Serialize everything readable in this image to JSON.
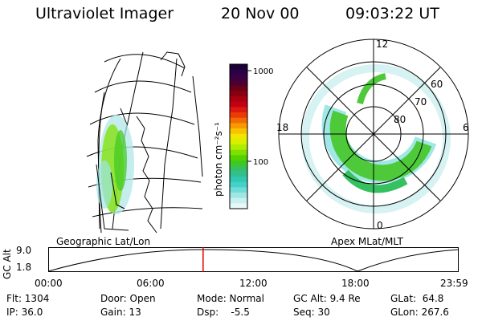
{
  "header": {
    "instrument": "Ultraviolet Imager",
    "date": "20 Nov 00",
    "time": "09:03:22 UT"
  },
  "colorbar": {
    "unit_label": "photon cm⁻²s⁻¹",
    "ticks": [
      "1000",
      "100"
    ],
    "colors": [
      "#1a0036",
      "#2a0046",
      "#3b0040",
      "#4a0030",
      "#6a0018",
      "#8a0010",
      "#a80010",
      "#c40012",
      "#da1a10",
      "#ea3a08",
      "#f26a00",
      "#f79a00",
      "#f7c200",
      "#f2e600",
      "#d7f000",
      "#b0ec00",
      "#7ee000",
      "#54d200",
      "#3ec820",
      "#36c060",
      "#30c090",
      "#30c8b0",
      "#44d2c8",
      "#70dcd8",
      "#a0e6e4",
      "#c8f0ee",
      "#e6f8f8"
    ]
  },
  "map_left": {
    "title": "Geographic Lat/Lon"
  },
  "polar_right": {
    "title": "Apex MLat/MLT",
    "mlt_labels": [
      "12",
      "18",
      "6",
      "0"
    ],
    "lat_labels": [
      "60",
      "70",
      "80"
    ]
  },
  "timeline": {
    "ylabel": "GC Alt",
    "y_ticks": [
      "9.0",
      "1.8"
    ],
    "x_ticks": [
      "00:00",
      "06:00",
      "12:00",
      "18:00",
      "23:59"
    ],
    "current_time_hours": 9.056,
    "marker_color": "#e00000"
  },
  "info": {
    "flt": "Flt: 1304",
    "ip": "IP: 36.0",
    "door": "Door: Open",
    "gain": "Gain: 13",
    "mode": "Mode: Normal",
    "dsp": "Dsp:    -5.5",
    "gcalt": "GC Alt: 9.4 Re",
    "seq": "Seq: 30",
    "glat": "GLat:  64.8",
    "glon": "GLon: 267.6"
  }
}
